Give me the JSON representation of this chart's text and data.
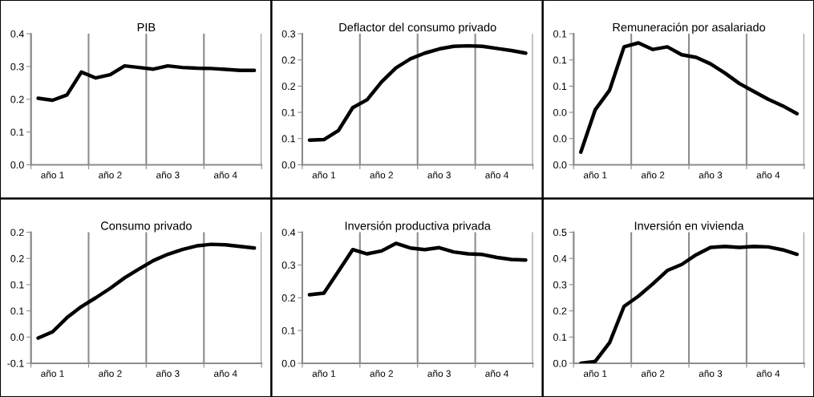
{
  "chart_data": [
    {
      "type": "line",
      "title": "PIB",
      "categories": [
        null,
        "año 1",
        null,
        null,
        null,
        "año 2",
        null,
        null,
        null,
        "año 3",
        null,
        null,
        null,
        "año 4",
        null,
        null
      ],
      "ylim": [
        0,
        0.4
      ],
      "yticks": [
        {
          "value": 0,
          "label": "0.0"
        },
        0.1,
        0.2,
        0.3,
        0.4
      ],
      "grid": "x",
      "series": [
        {
          "color": "#000000",
          "values": [
            0.203,
            0.197,
            0.213,
            0.283,
            0.265,
            0.275,
            0.302,
            0.297,
            0.292,
            0.302,
            0.297,
            0.295,
            0.294,
            0.291,
            0.288,
            0.288
          ]
        }
      ]
    },
    {
      "type": "line",
      "title": "Deflactor del consumo privado",
      "categories": [
        null,
        "año 1",
        null,
        null,
        null,
        "año 2",
        null,
        null,
        null,
        "año 3",
        null,
        null,
        null,
        "año 4",
        null,
        null
      ],
      "ylim": [
        0,
        0.25
      ],
      "yticks": [
        {
          "value": 0,
          "label": "0.0"
        },
        {
          "value": 0.05,
          "label": "0.1"
        },
        {
          "value": 0.1,
          "label": "0.1"
        },
        {
          "value": 0.15,
          "label": "0.2"
        },
        {
          "value": 0.2,
          "label": "0.2"
        },
        {
          "value": 0.25,
          "label": "0.3"
        }
      ],
      "grid": "x",
      "series": [
        {
          "color": "#000000",
          "values": [
            0.047,
            0.048,
            0.065,
            0.109,
            0.124,
            0.158,
            0.185,
            0.202,
            0.213,
            0.221,
            0.226,
            0.227,
            0.226,
            0.222,
            0.218,
            0.213
          ]
        }
      ]
    },
    {
      "type": "line",
      "title": "Remuneración por asalariado",
      "categories": [
        null,
        "año 1",
        null,
        null,
        null,
        "año 2",
        null,
        null,
        null,
        "año 3",
        null,
        null,
        null,
        "año 4",
        null,
        null
      ],
      "ylim": [
        0,
        0.1
      ],
      "yticks": [
        {
          "value": 0,
          "label": "0.0"
        },
        {
          "value": 0.02,
          "label": "0.0"
        },
        {
          "value": 0.04,
          "label": "0.0"
        },
        {
          "value": 0.06,
          "label": "0.1"
        },
        {
          "value": 0.08,
          "label": "0.1"
        },
        {
          "value": 0.1,
          "label": "0.1"
        }
      ],
      "grid": "x",
      "series": [
        {
          "color": "#000000",
          "values": [
            0.0096,
            0.042,
            0.057,
            0.09,
            0.093,
            0.088,
            0.09,
            0.084,
            0.082,
            0.077,
            0.07,
            0.062,
            0.056,
            0.05,
            0.045,
            0.039
          ]
        }
      ]
    },
    {
      "type": "line",
      "title": "Consumo privado",
      "categories": [
        null,
        "año 1",
        null,
        null,
        null,
        "año 2",
        null,
        null,
        null,
        "año 3",
        null,
        null,
        null,
        "año 4",
        null,
        null
      ],
      "ylim": [
        -0.05,
        0.2
      ],
      "yticks": [
        {
          "value": -0.05,
          "label": "-0.1"
        },
        {
          "value": 0,
          "label": "0.0"
        },
        {
          "value": 0.05,
          "label": "0.1"
        },
        {
          "value": 0.1,
          "label": "0.1"
        },
        {
          "value": 0.15,
          "label": "0.2"
        },
        {
          "value": 0.2,
          "label": "0.2"
        }
      ],
      "grid": "x",
      "series": [
        {
          "color": "#000000",
          "values": [
            -0.002,
            0.01,
            0.037,
            0.058,
            0.075,
            0.093,
            0.113,
            0.13,
            0.146,
            0.158,
            0.167,
            0.174,
            0.177,
            0.176,
            0.173,
            0.17
          ]
        }
      ]
    },
    {
      "type": "line",
      "title": "Inversión productiva privada",
      "categories": [
        null,
        "año 1",
        null,
        null,
        null,
        "año 2",
        null,
        null,
        null,
        "año 3",
        null,
        null,
        null,
        "año 4",
        null,
        null
      ],
      "ylim": [
        0,
        0.4
      ],
      "yticks": [
        {
          "value": 0,
          "label": "0.0"
        },
        0.1,
        0.2,
        0.3,
        0.4
      ],
      "grid": "x",
      "series": [
        {
          "color": "#000000",
          "values": [
            0.209,
            0.214,
            0.28,
            0.347,
            0.334,
            0.343,
            0.366,
            0.352,
            0.347,
            0.353,
            0.34,
            0.334,
            0.332,
            0.323,
            0.317,
            0.315
          ]
        }
      ]
    },
    {
      "type": "line",
      "title": "Inversión en vivienda",
      "categories": [
        null,
        "año 1",
        null,
        null,
        null,
        "año 2",
        null,
        null,
        null,
        "año 3",
        null,
        null,
        null,
        "año 4",
        null,
        null
      ],
      "ylim": [
        0,
        0.5
      ],
      "yticks": [
        {
          "value": 0,
          "label": "0.0"
        },
        0.1,
        0.2,
        0.3,
        0.4,
        0.5
      ],
      "grid": "x",
      "series": [
        {
          "color": "#000000",
          "values": [
            0.0,
            0.007,
            0.079,
            0.217,
            0.256,
            0.303,
            0.354,
            0.377,
            0.414,
            0.442,
            0.446,
            0.442,
            0.446,
            0.444,
            0.433,
            0.416
          ]
        }
      ]
    }
  ]
}
